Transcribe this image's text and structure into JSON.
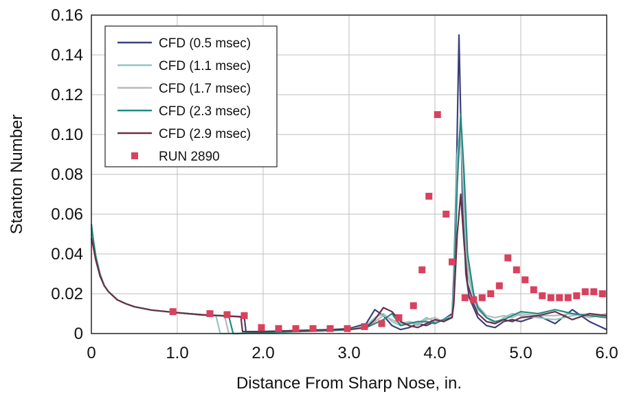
{
  "chart_data": {
    "type": "line",
    "title": "",
    "xlabel": "Distance From Sharp Nose, in.",
    "ylabel": "Stanton Number",
    "xlim": [
      0,
      6.0
    ],
    "ylim": [
      0,
      0.16
    ],
    "x_ticks": [
      0,
      1.0,
      2.0,
      3.0,
      4.0,
      5.0,
      6.0
    ],
    "x_tick_labels": [
      "0",
      "1.0",
      "2.0",
      "3.0",
      "4.0",
      "5.0",
      "6.0"
    ],
    "y_ticks": [
      0,
      0.02,
      0.04,
      0.06,
      0.08,
      0.1,
      0.12,
      0.14,
      0.16
    ],
    "y_tick_labels": [
      "0",
      "0.02",
      "0.04",
      "0.06",
      "0.08",
      "0.10",
      "0.12",
      "0.14",
      "0.16"
    ],
    "grid": true,
    "legend_position": "top-left",
    "series": [
      {
        "name": "CFD (0.5 msec)",
        "type": "line",
        "color": "#3a3f7a",
        "x": [
          0,
          0.02,
          0.05,
          0.1,
          0.15,
          0.2,
          0.3,
          0.4,
          0.5,
          0.7,
          1.0,
          1.3,
          1.5,
          1.7,
          1.78,
          1.8,
          2.0,
          2.4,
          2.8,
          3.0,
          3.2,
          3.3,
          3.4,
          3.5,
          3.6,
          3.7,
          3.8,
          3.9,
          4.0,
          4.1,
          4.2,
          4.22,
          4.25,
          4.28,
          4.32,
          4.36,
          4.4,
          4.5,
          4.6,
          4.7,
          4.8,
          4.9,
          5.0,
          5.2,
          5.4,
          5.6,
          5.8,
          6.0
        ],
        "y": [
          0.05,
          0.046,
          0.038,
          0.029,
          0.024,
          0.021,
          0.017,
          0.015,
          0.0135,
          0.0118,
          0.0105,
          0.0094,
          0.009,
          0.0085,
          0.0082,
          0.001,
          0.001,
          0.0015,
          0.002,
          0.0025,
          0.005,
          0.012,
          0.009,
          0.004,
          0.002,
          0.003,
          0.005,
          0.004,
          0.006,
          0.007,
          0.01,
          0.03,
          0.08,
          0.15,
          0.07,
          0.03,
          0.018,
          0.008,
          0.004,
          0.003,
          0.006,
          0.007,
          0.006,
          0.009,
          0.005,
          0.012,
          0.006,
          0.002
        ]
      },
      {
        "name": "CFD (1.1 msec)",
        "type": "line",
        "color": "#8ec7c2",
        "x": [
          0,
          0.02,
          0.05,
          0.1,
          0.15,
          0.2,
          0.3,
          0.4,
          0.5,
          0.7,
          1.0,
          1.3,
          1.45,
          1.5,
          1.6,
          1.7,
          2.0,
          2.4,
          2.8,
          3.0,
          3.2,
          3.3,
          3.4,
          3.5,
          3.6,
          3.7,
          3.8,
          3.9,
          4.0,
          4.1,
          4.2,
          4.22,
          4.26,
          4.3,
          4.34,
          4.38,
          4.45,
          4.5,
          4.6,
          4.7,
          4.8,
          4.9,
          5.0,
          5.2,
          5.4,
          5.6,
          5.8,
          6.0
        ],
        "y": [
          0.053,
          0.047,
          0.039,
          0.029,
          0.024,
          0.021,
          0.017,
          0.015,
          0.0135,
          0.0118,
          0.0105,
          0.0092,
          0.009,
          0.0,
          0.0,
          0.0,
          0.0005,
          0.001,
          0.0015,
          0.002,
          0.004,
          0.008,
          0.01,
          0.006,
          0.004,
          0.006,
          0.005,
          0.008,
          0.006,
          0.007,
          0.009,
          0.025,
          0.09,
          0.105,
          0.06,
          0.03,
          0.018,
          0.012,
          0.008,
          0.005,
          0.008,
          0.01,
          0.009,
          0.008,
          0.007,
          0.009,
          0.01,
          0.008
        ]
      },
      {
        "name": "CFD (1.7 msec)",
        "type": "line",
        "color": "#b8b8b8",
        "x": [
          0,
          0.02,
          0.05,
          0.1,
          0.15,
          0.2,
          0.3,
          0.4,
          0.5,
          0.7,
          1.0,
          1.3,
          1.55,
          1.6,
          1.7,
          2.0,
          2.4,
          2.8,
          3.0,
          3.2,
          3.3,
          3.4,
          3.5,
          3.6,
          3.7,
          3.8,
          3.9,
          4.0,
          4.1,
          4.2,
          4.22,
          4.26,
          4.3,
          4.34,
          4.38,
          4.45,
          4.5,
          4.6,
          4.7,
          4.8,
          4.9,
          5.0,
          5.2,
          5.4,
          5.6,
          5.8,
          6.0
        ],
        "y": [
          0.05,
          0.045,
          0.038,
          0.029,
          0.024,
          0.021,
          0.017,
          0.015,
          0.0135,
          0.0118,
          0.0105,
          0.0093,
          0.009,
          0.0,
          0.0,
          0.0005,
          0.001,
          0.0015,
          0.002,
          0.003,
          0.006,
          0.009,
          0.007,
          0.005,
          0.006,
          0.004,
          0.007,
          0.008,
          0.006,
          0.008,
          0.02,
          0.08,
          0.1,
          0.07,
          0.035,
          0.02,
          0.014,
          0.009,
          0.008,
          0.009,
          0.008,
          0.01,
          0.009,
          0.009,
          0.01,
          0.008,
          0.01
        ]
      },
      {
        "name": "CFD (2.3 msec)",
        "type": "line",
        "color": "#1f8a83",
        "x": [
          0,
          0.02,
          0.05,
          0.1,
          0.15,
          0.2,
          0.3,
          0.4,
          0.5,
          0.7,
          1.0,
          1.3,
          1.6,
          1.65,
          1.7,
          2.0,
          2.4,
          2.8,
          3.0,
          3.2,
          3.3,
          3.4,
          3.5,
          3.6,
          3.7,
          3.8,
          3.9,
          4.0,
          4.1,
          4.2,
          4.22,
          4.26,
          4.3,
          4.34,
          4.38,
          4.45,
          4.5,
          4.6,
          4.7,
          4.8,
          4.9,
          5.0,
          5.2,
          5.4,
          5.6,
          5.8,
          6.0
        ],
        "y": [
          0.055,
          0.048,
          0.039,
          0.03,
          0.024,
          0.021,
          0.017,
          0.015,
          0.0135,
          0.0118,
          0.0105,
          0.0093,
          0.0088,
          0.0,
          0.0,
          0.0005,
          0.001,
          0.0015,
          0.002,
          0.003,
          0.005,
          0.007,
          0.01,
          0.004,
          0.005,
          0.006,
          0.006,
          0.005,
          0.007,
          0.008,
          0.018,
          0.075,
          0.11,
          0.08,
          0.04,
          0.02,
          0.013,
          0.008,
          0.006,
          0.007,
          0.009,
          0.011,
          0.01,
          0.012,
          0.01,
          0.009,
          0.008
        ]
      },
      {
        "name": "CFD (2.9 msec)",
        "type": "line",
        "color": "#6b2f45",
        "x": [
          0,
          0.02,
          0.05,
          0.1,
          0.15,
          0.2,
          0.3,
          0.4,
          0.5,
          0.7,
          1.0,
          1.3,
          1.6,
          1.74,
          1.76,
          2.0,
          2.4,
          2.8,
          3.0,
          3.2,
          3.3,
          3.4,
          3.5,
          3.6,
          3.7,
          3.8,
          3.9,
          4.0,
          4.1,
          4.2,
          4.22,
          4.26,
          4.3,
          4.34,
          4.38,
          4.45,
          4.5,
          4.6,
          4.7,
          4.8,
          4.9,
          5.0,
          5.2,
          5.4,
          5.6,
          5.8,
          6.0
        ],
        "y": [
          0.048,
          0.044,
          0.037,
          0.029,
          0.024,
          0.021,
          0.017,
          0.015,
          0.0135,
          0.0118,
          0.0105,
          0.0094,
          0.0088,
          0.0085,
          0.001,
          0.001,
          0.0015,
          0.002,
          0.002,
          0.003,
          0.007,
          0.013,
          0.011,
          0.006,
          0.004,
          0.003,
          0.005,
          0.007,
          0.006,
          0.008,
          0.015,
          0.05,
          0.07,
          0.045,
          0.025,
          0.015,
          0.01,
          0.006,
          0.005,
          0.007,
          0.006,
          0.008,
          0.009,
          0.011,
          0.007,
          0.01,
          0.009
        ]
      },
      {
        "name": "RUN 2890",
        "type": "scatter",
        "color": "#d9415e",
        "x": [
          0.95,
          1.38,
          1.58,
          1.78,
          1.98,
          2.18,
          2.38,
          2.58,
          2.78,
          2.98,
          3.18,
          3.38,
          3.58,
          3.75,
          3.85,
          3.93,
          4.03,
          4.13,
          4.2,
          4.35,
          4.45,
          4.55,
          4.65,
          4.75,
          4.85,
          4.95,
          5.05,
          5.15,
          5.25,
          5.35,
          5.45,
          5.55,
          5.65,
          5.75,
          5.85,
          5.95
        ],
        "y": [
          0.011,
          0.01,
          0.0095,
          0.009,
          0.003,
          0.0025,
          0.0025,
          0.0025,
          0.0025,
          0.0025,
          0.0035,
          0.005,
          0.008,
          0.014,
          0.032,
          0.069,
          0.11,
          0.06,
          0.036,
          0.018,
          0.017,
          0.018,
          0.02,
          0.024,
          0.038,
          0.032,
          0.027,
          0.022,
          0.019,
          0.018,
          0.018,
          0.018,
          0.019,
          0.021,
          0.021,
          0.02
        ]
      }
    ]
  }
}
